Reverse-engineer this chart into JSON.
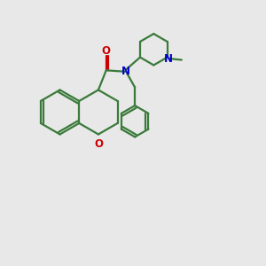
{
  "bg_color": "#e8e8e8",
  "bond_color": "#3a7a3a",
  "N_color": "#0000cc",
  "O_color": "#cc0000",
  "line_width": 1.6,
  "figsize": [
    3.0,
    3.0
  ],
  "dpi": 100,
  "xlim": [
    0,
    10
  ],
  "ylim": [
    0,
    10
  ]
}
